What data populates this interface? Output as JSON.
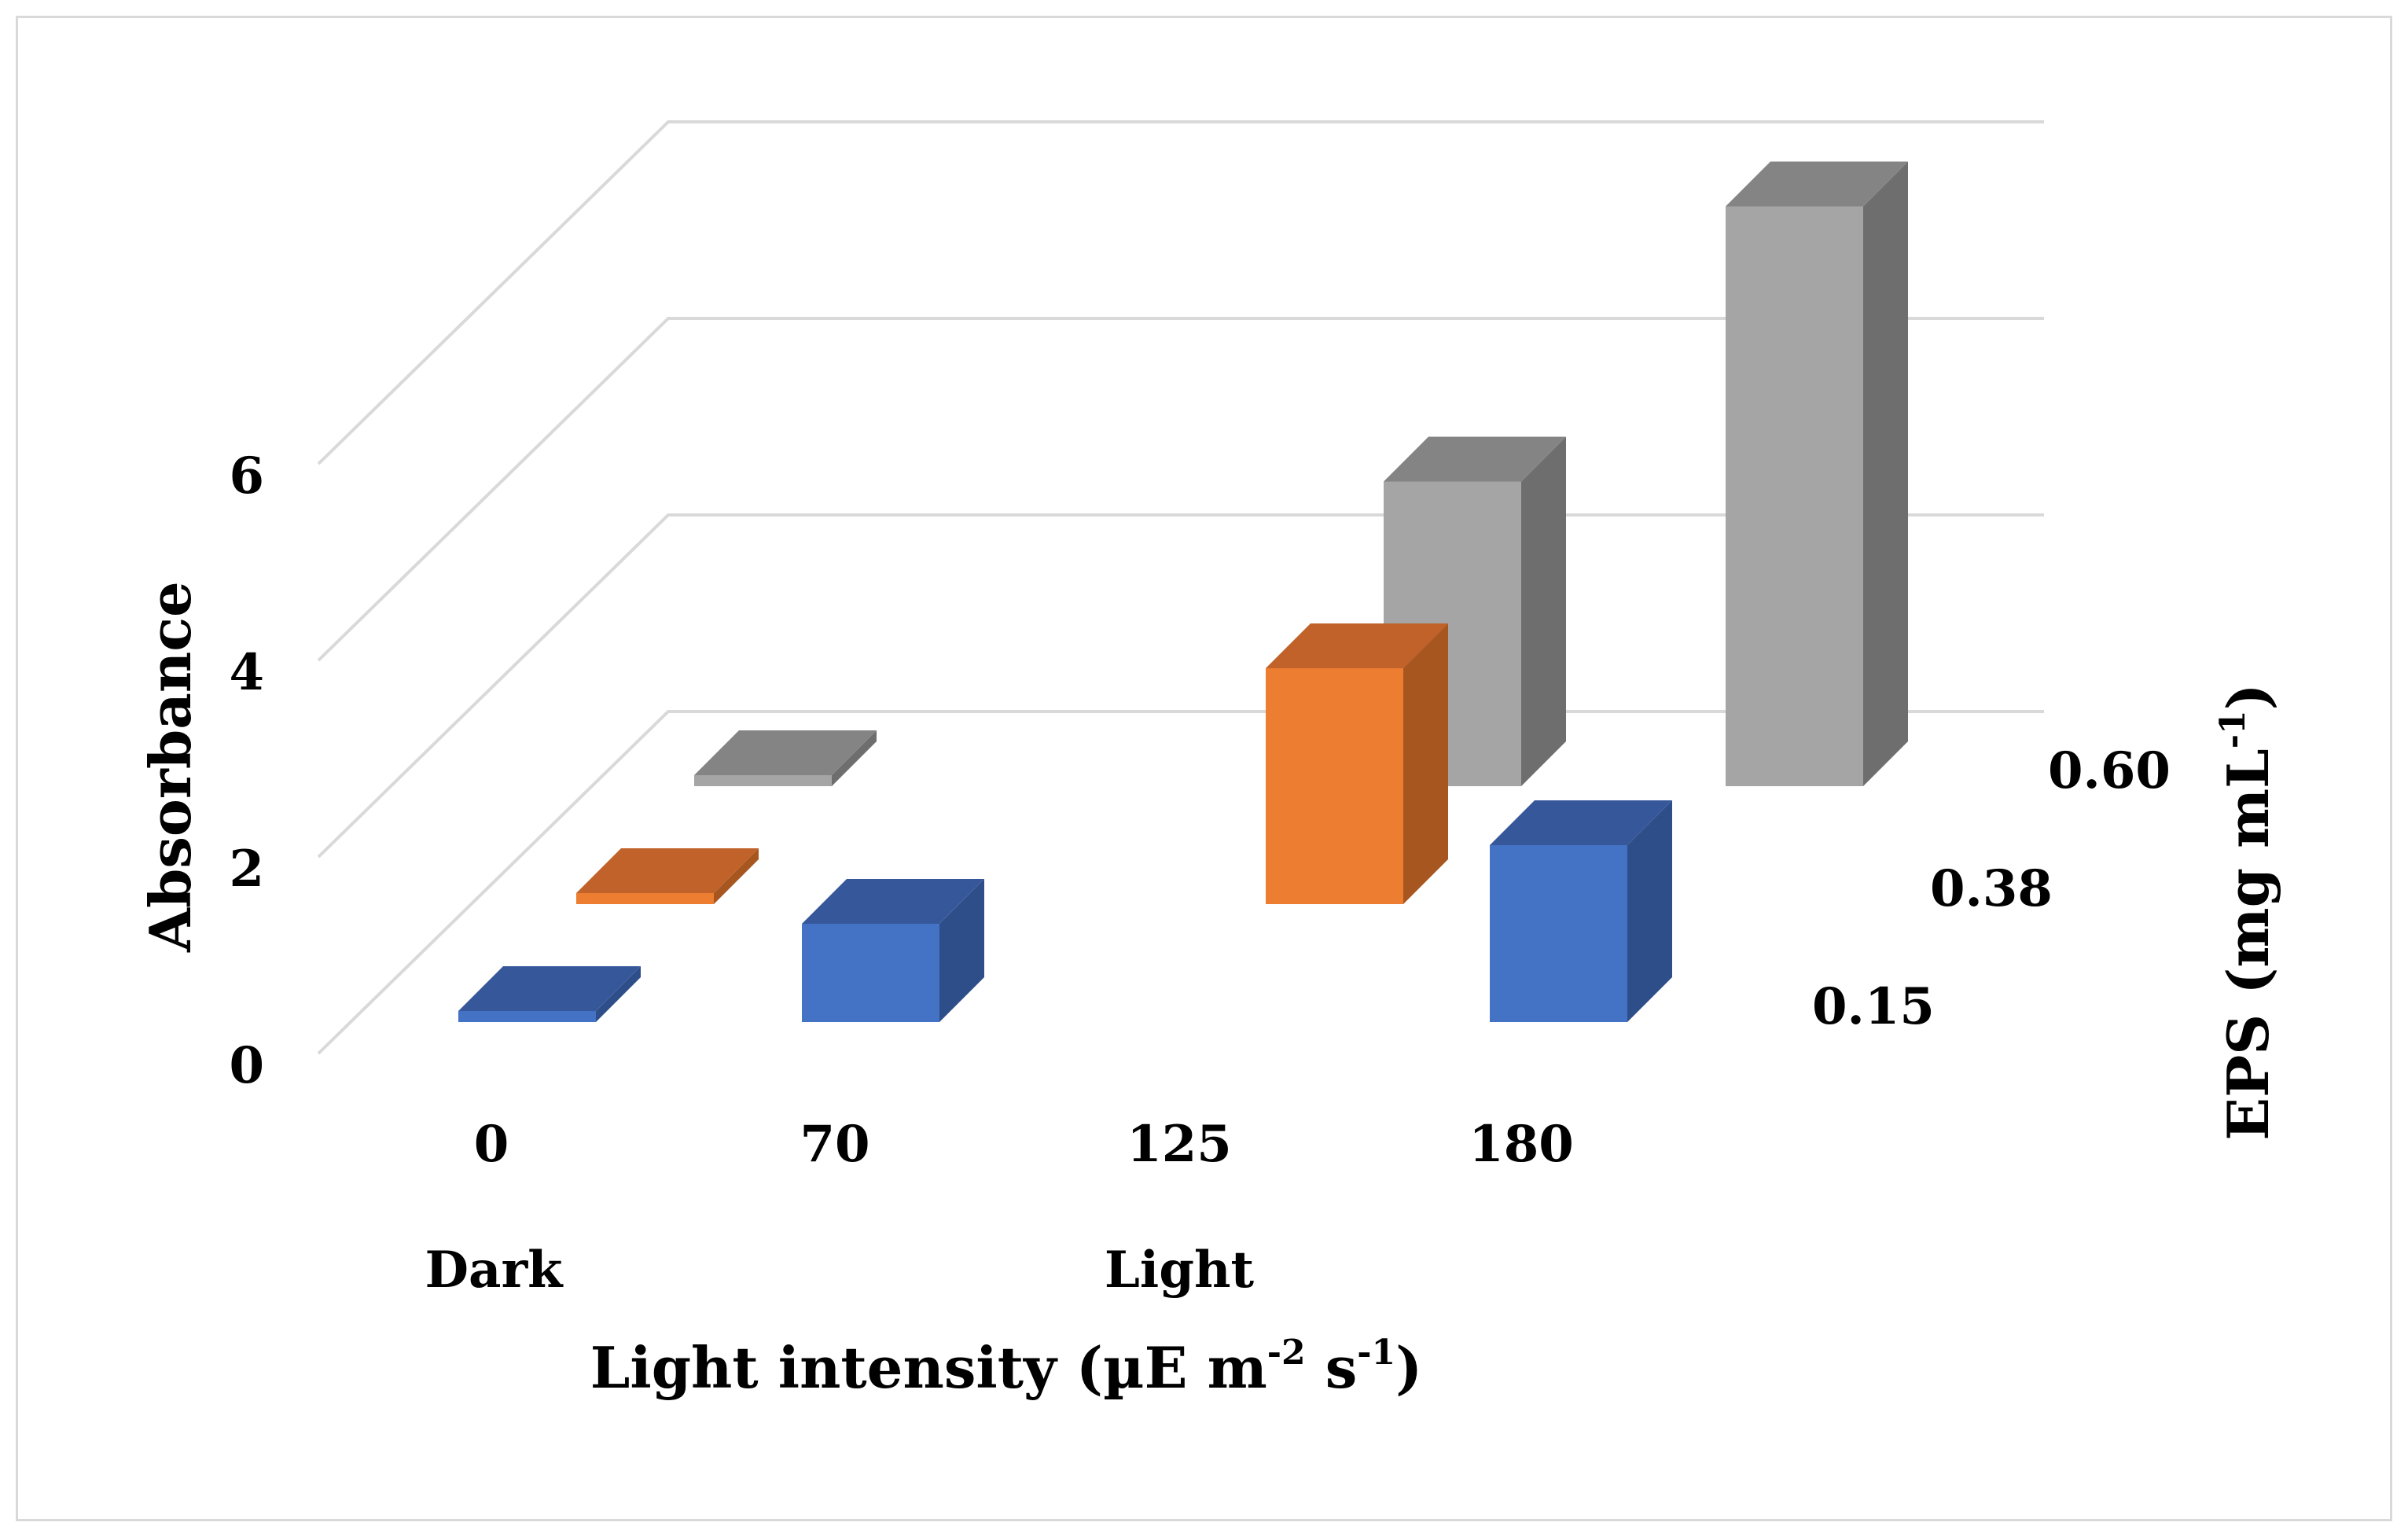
{
  "chart_data": {
    "type": "bar3d",
    "title": "",
    "x_categories": [
      "0",
      "70",
      "125",
      "180"
    ],
    "x_groups": [
      "Dark",
      "Light"
    ],
    "xlabel": "Light intensity (µE  m-2 s-1)",
    "xlabel_parts": {
      "main": "Light intensity  (µE  m",
      "sup1": "-2",
      "mid": " s",
      "sup2": "-1",
      "end": ")"
    },
    "ylabel": "Absorbance",
    "ylim": [
      0,
      6
    ],
    "y_ticks": [
      "0",
      "2",
      "4",
      "6"
    ],
    "zlabel": "EPS (mg mL-1)",
    "zlabel_parts": {
      "main": "EPS (mg mL",
      "sup": "-1",
      "end": ")"
    },
    "series": [
      {
        "name": "0.15",
        "values": [
          0.05,
          1.0,
          null,
          1.8
        ]
      },
      {
        "name": "0.38",
        "values": [
          0.05,
          null,
          2.4,
          null
        ]
      },
      {
        "name": "0.60",
        "values": [
          0.08,
          null,
          3.1,
          5.9
        ]
      }
    ],
    "colors": {
      "0.15": {
        "front": "#4472c4",
        "side": "#2e4e8a",
        "top": "#36589a"
      },
      "0.38": {
        "front": "#ed7d31",
        "side": "#a8561f",
        "top": "#c0622a"
      },
      "0.60": {
        "front": "#a5a5a5",
        "side": "#6e6e6e",
        "top": "#848484"
      }
    },
    "gridlines": true
  }
}
